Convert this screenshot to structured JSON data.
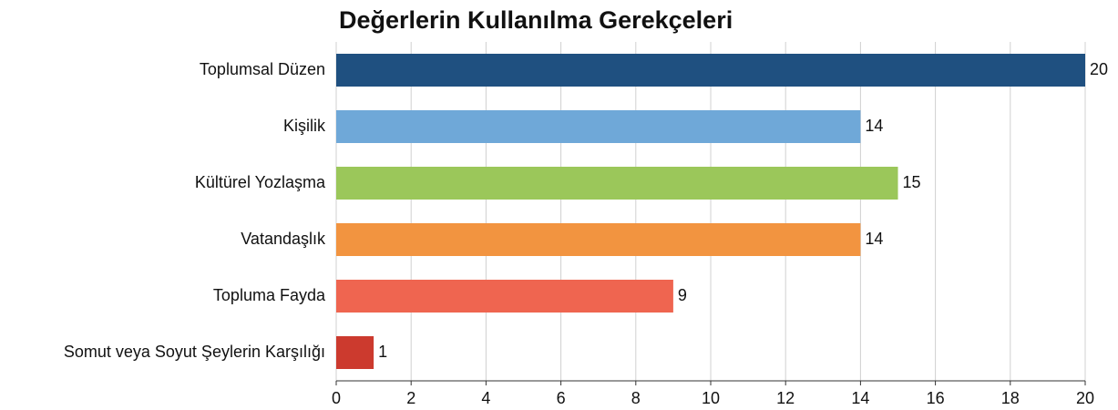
{
  "chart_data": {
    "type": "bar",
    "orientation": "horizontal",
    "title": "Değerlerin Kullanılma Gerekçeleri",
    "categories": [
      "Toplumsal Düzen",
      "Kişilik",
      "Kültürel Yozlaşma",
      "Vatandaşlık",
      "Topluma Fayda",
      "Somut veya Soyut Şeylerin Karşılığı"
    ],
    "values": [
      20,
      14,
      15,
      14,
      9,
      1
    ],
    "colors": [
      "#1f5080",
      "#6fa8d8",
      "#9bc75a",
      "#f29440",
      "#ef6550",
      "#cc3a2e"
    ],
    "xlim": [
      0,
      20
    ],
    "xticks": [
      0,
      2,
      4,
      6,
      8,
      10,
      12,
      14,
      16,
      18,
      20
    ],
    "grid": true
  }
}
